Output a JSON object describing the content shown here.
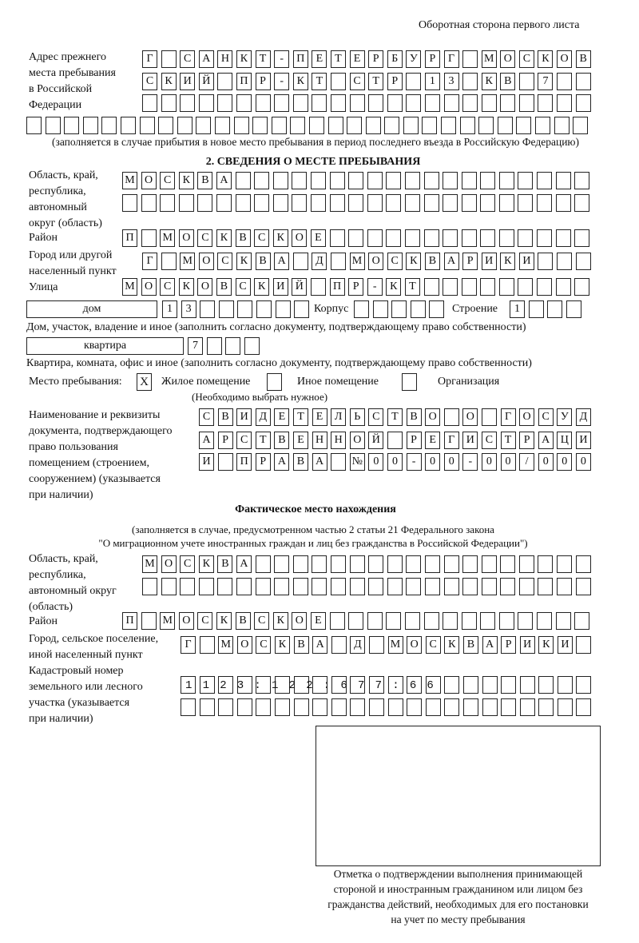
{
  "header": {
    "side": "Оборотная сторона первого листа"
  },
  "previous_address": {
    "label": [
      "Адрес прежнего",
      "места пребывания",
      "в Российской",
      "Федерации"
    ],
    "rows": [
      "Г САНКТ-ПЕТЕРБУРГ МОСКОВ",
      "СКИЙ ПР-КТ СТР 13 КВ 7",
      "",
      ""
    ],
    "note": "(заполняется в случае прибытия в новое место пребывания в период последнего въезда в Российскую Федерацию)"
  },
  "section2": {
    "title": "2. СВЕДЕНИЯ О МЕСТЕ ПРЕБЫВАНИЯ",
    "region_label": [
      "Область, край,",
      "республика,",
      "автономный",
      "округ (область)"
    ],
    "region_rows": [
      "МОСКВА",
      ""
    ],
    "district_label": "Район",
    "district": "П МОСКВСКОЕ",
    "city_label": [
      "Город или другой",
      "населенный пункт"
    ],
    "city": "Г МОСКВА Д МОСКВАРИКИ",
    "street_label": "Улица",
    "street": "МОСКОВСКИЙ ПР-КТ",
    "house_type": "дом",
    "house": "13",
    "korpus_label": "Корпус",
    "korpus": "",
    "building_label": "Строение",
    "building": "1",
    "house_note": "Дом, участок, владение и иное (заполнить согласно документу, подтверждающему право собственности)",
    "flat_type": "квартира",
    "flat": "7",
    "flat_note": "Квартира, комната, офис и иное (заполнить согласно документу, подтверждающему право собственности)",
    "stay_label": "Место пребывания:",
    "stay_options": [
      {
        "label": "Жилое помещение",
        "mark": "X"
      },
      {
        "label": "Иное помещение",
        "mark": ""
      },
      {
        "label": "Организация",
        "mark": ""
      }
    ],
    "stay_note": "(Необходимо выбрать нужное)",
    "doc_label": [
      "Наименование и реквизиты",
      "документа, подтверждающего",
      "право пользования",
      "помещением (строением,",
      "сооружением) (указывается",
      "при наличии)"
    ],
    "doc_rows": [
      "СВИДЕТЕЛЬСТВО О ГОСУД",
      "АРСТВЕННОЙ РЕГИСТРАЦИ",
      "И ПРАВА №00-00-00/000"
    ]
  },
  "actual": {
    "title": "Фактическое место нахождения",
    "note": [
      "(заполняется в случае, предусмотренном частью 2 статьи 21 Федерального закона",
      "\"О миграционном учете иностранных граждан и лиц без гражданства в Российской Федерации\")"
    ],
    "region_label": [
      "Область, край,",
      "республика,",
      "автономный округ",
      "(область)"
    ],
    "region_rows": [
      "МОСКВА",
      ""
    ],
    "district_label": "Район",
    "district": "П МОСКВСКОЕ",
    "city_label": [
      "Город, сельское поселение,",
      "иной населенный пункт"
    ],
    "city": "Г МОСКВА Д МОСКВАРИКИ",
    "cadastre_label": [
      "Кадастровый номер",
      "земельного или лесного",
      "участка (указывается",
      "при наличии)"
    ],
    "cadastre_rows": [
      "1123:122:677:66",
      ""
    ]
  },
  "stamp": {
    "caption": [
      "Отметка о подтверждении выполнения принимающей",
      "стороной и иностранным гражданином или лицом без",
      "гражданства действий, необходимых для его постановки",
      "на учет по месту пребывания"
    ]
  }
}
